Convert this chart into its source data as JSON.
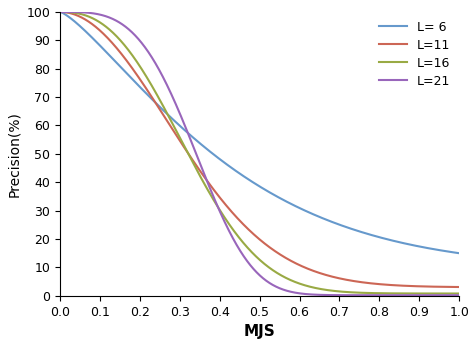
{
  "title": "",
  "xlabel": "MJS",
  "ylabel": "Precision(%)",
  "xlim": [
    0,
    1
  ],
  "ylim": [
    0,
    100
  ],
  "xticks": [
    0,
    0.1,
    0.2,
    0.3,
    0.4,
    0.5,
    0.6,
    0.7,
    0.8,
    0.9,
    1
  ],
  "yticks": [
    0,
    10,
    20,
    30,
    40,
    50,
    60,
    70,
    80,
    90,
    100
  ],
  "series": [
    {
      "label": "L= 6",
      "color": "#6699CC",
      "alpha": 2.8,
      "beta": 1.3,
      "floor": 9.5
    },
    {
      "label": "L=11",
      "color": "#CC6655",
      "alpha": 7.0,
      "beta": 2.0,
      "floor": 3.0
    },
    {
      "label": "L=16",
      "color": "#99AA44",
      "alpha": 12.0,
      "beta": 2.5,
      "floor": 0.8
    },
    {
      "label": "L=21",
      "color": "#9966BB",
      "alpha": 30.0,
      "beta": 3.5,
      "floor": 0.2
    }
  ],
  "background_color": "#ffffff",
  "xlabel_fontsize": 11,
  "ylabel_fontsize": 10,
  "tick_fontsize": 9,
  "legend_fontsize": 9
}
